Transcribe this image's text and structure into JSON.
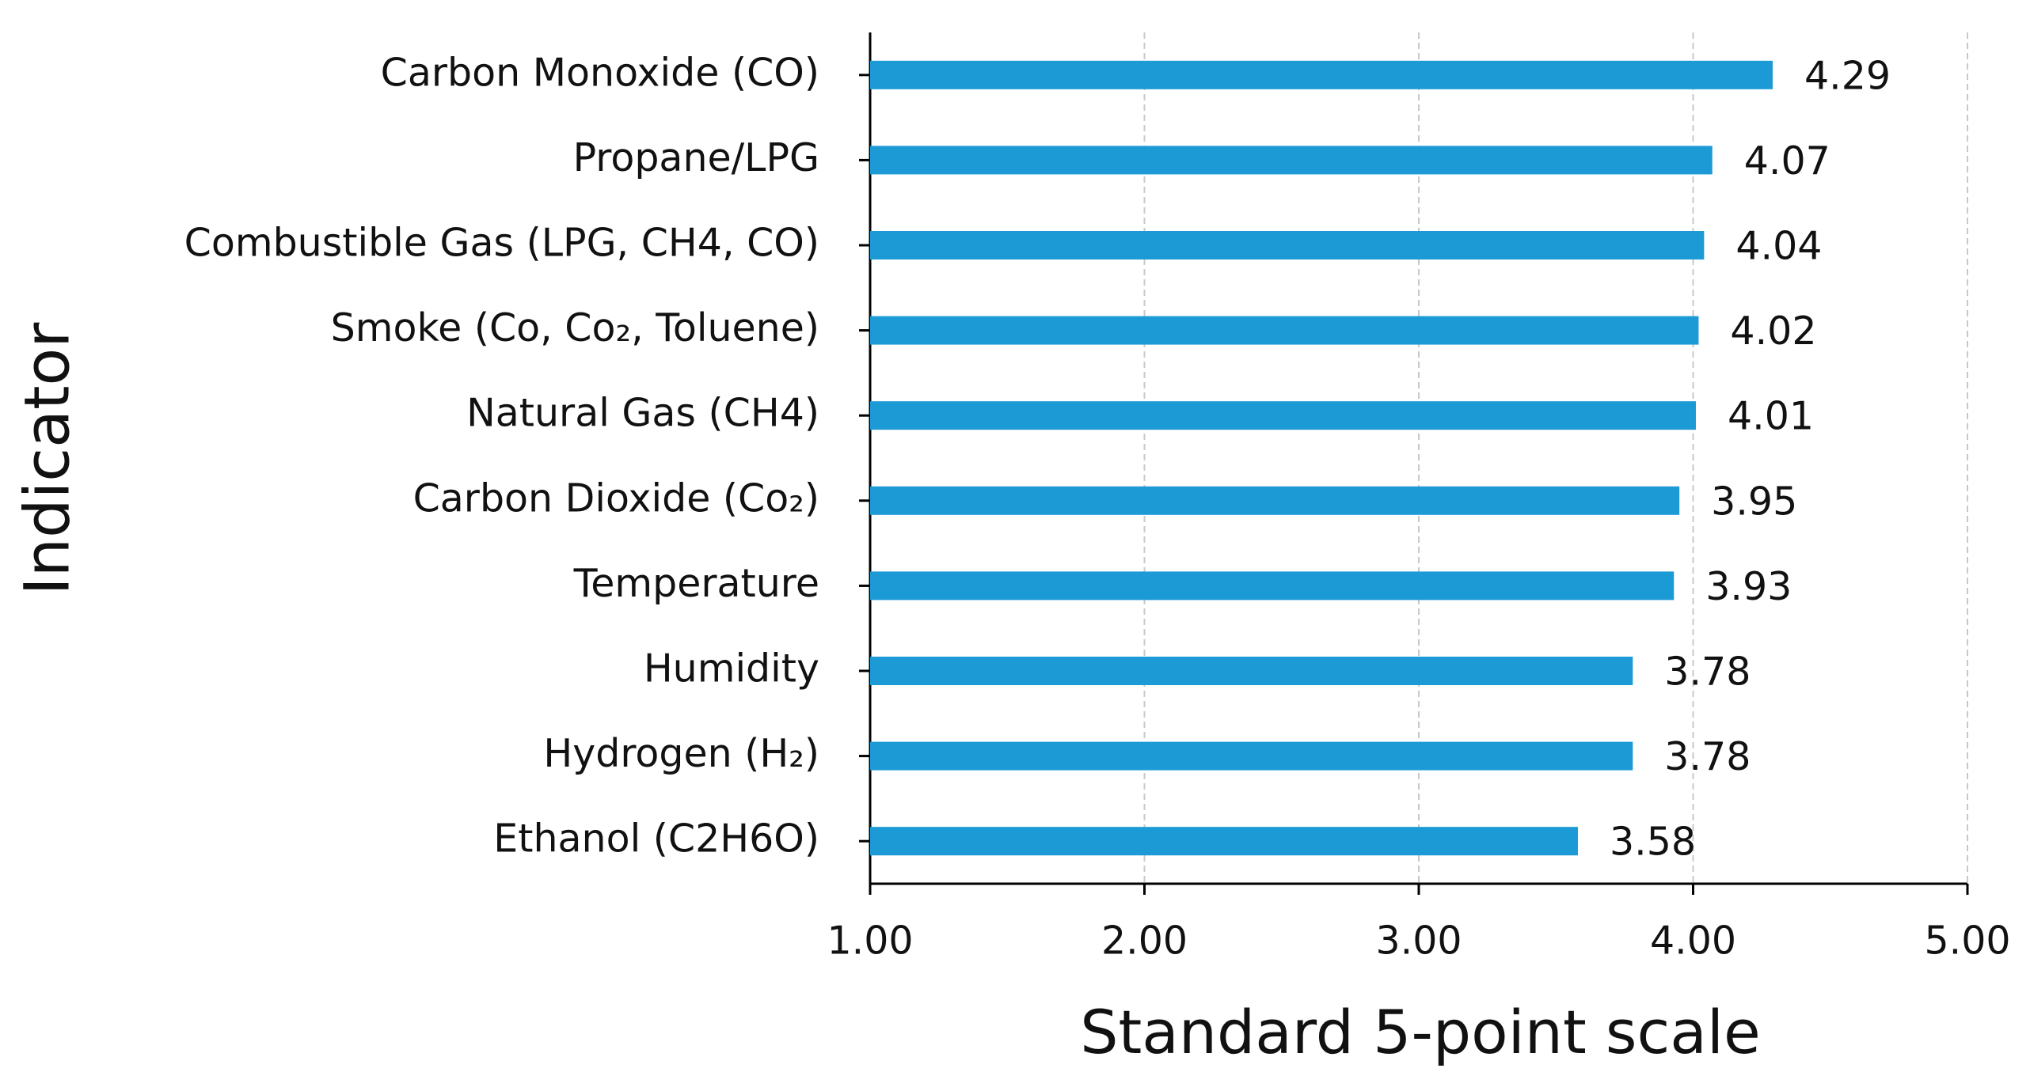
{
  "chart_data": {
    "type": "bar",
    "orientation": "horizontal",
    "xlabel": "Standard 5-point scale",
    "ylabel": "Indicator",
    "categories": [
      "Carbon Monoxide (CO)",
      "Propane/LPG",
      "Combustible Gas (LPG, CH4, CO)",
      "Smoke (Co, Co₂, Toluene)",
      "Natural Gas (CH4)",
      "Carbon Dioxide (Co₂)",
      "Temperature",
      "Humidity",
      "Hydrogen (H₂)",
      "Ethanol (C2H6O)"
    ],
    "values": [
      4.29,
      4.07,
      4.04,
      4.02,
      4.01,
      3.95,
      3.93,
      3.78,
      3.78,
      3.58
    ],
    "color": "#1b9ad6",
    "xlim": [
      1,
      5
    ],
    "xticks": [
      {
        "value": 1,
        "label": "1.00"
      },
      {
        "value": 2,
        "label": "2.00"
      },
      {
        "value": 3,
        "label": "3.00"
      },
      {
        "value": 4,
        "label": "4.00"
      },
      {
        "value": 5,
        "label": "5.00"
      }
    ],
    "grid": true
  }
}
